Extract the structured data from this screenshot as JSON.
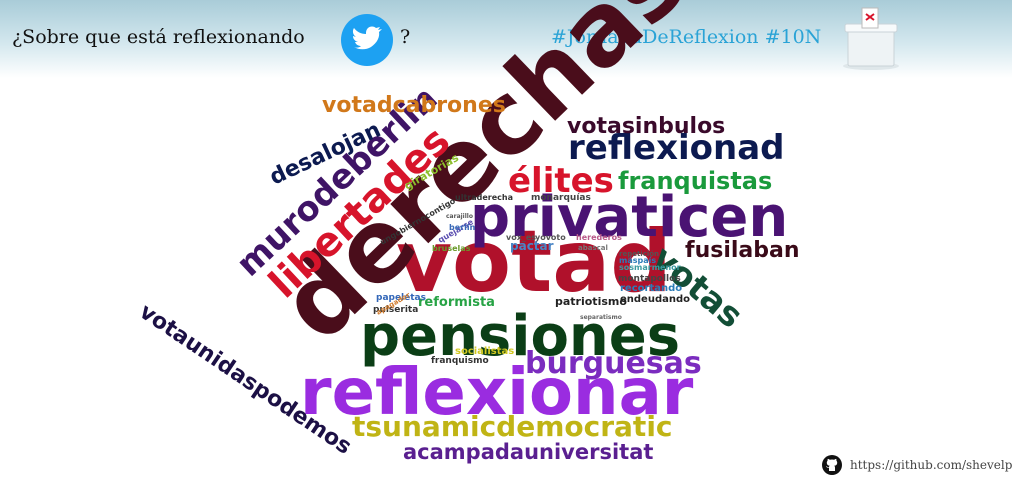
{
  "header": {
    "question": "¿Sobre que está reflexionando",
    "question_end": "?",
    "bird_icon": "twitter-bird-icon",
    "hashtags": "#JornadaDeReflexion #10N",
    "ballot_icon": "ballot-box-icon"
  },
  "footer": {
    "github_icon": "github-icon",
    "url": "https://github.com/shevelp"
  },
  "cloud": {
    "words": [
      {
        "text": "votad",
        "color": "#b0112b"
      },
      {
        "text": "derechas",
        "color": "#4a0d1b"
      },
      {
        "text": "pensiones",
        "color": "#0b3e16"
      },
      {
        "text": "reflexionar",
        "color": "#9a2ce0"
      },
      {
        "text": "privaticen",
        "color": "#4a1373"
      },
      {
        "text": "libertades",
        "color": "#d7142b"
      },
      {
        "text": "murodeberlin",
        "color": "#3f1466"
      },
      {
        "text": "reflexionad",
        "color": "#0c1a50"
      },
      {
        "text": "élites",
        "color": "#d7142b"
      },
      {
        "text": "franquistas",
        "color": "#1a9a3c"
      },
      {
        "text": "votasinbulos",
        "color": "#3a0a2b"
      },
      {
        "text": "votadcabrones",
        "color": "#d1781a"
      },
      {
        "text": "desalojan",
        "color": "#0c1a50"
      },
      {
        "text": "fusilaban",
        "color": "#3a0a18"
      },
      {
        "text": "votas",
        "color": "#124e36"
      },
      {
        "text": "burguesas",
        "color": "#7b2cbf"
      },
      {
        "text": "tsunamicdemocratic",
        "color": "#c0b415"
      },
      {
        "text": "acampadauniversitat",
        "color": "#5a1f90"
      },
      {
        "text": "votaunidaspodemos",
        "color": "#1c1045"
      },
      {
        "text": "giratorias",
        "color": "#8bbd2b"
      },
      {
        "text": "reformista",
        "color": "#27a345"
      },
      {
        "text": "papeletas",
        "color": "#3367b8"
      },
      {
        "text": "pulserita",
        "color": "#333333"
      },
      {
        "text": "franquismo",
        "color": "#333333"
      },
      {
        "text": "socialistas",
        "color": "#d1c820"
      },
      {
        "text": "patriotismo",
        "color": "#222222"
      },
      {
        "text": "endeudando",
        "color": "#222222"
      },
      {
        "text": "recortando",
        "color": "#2b7cb8"
      },
      {
        "text": "montapollos",
        "color": "#444444"
      },
      {
        "text": "monarquías",
        "color": "#444444"
      },
      {
        "text": "ultraderecha",
        "color": "#333333"
      },
      {
        "text": "pactar",
        "color": "#4a86c6"
      },
      {
        "text": "ungobiernocontigo",
        "color": "#333333"
      },
      {
        "text": "quejarse",
        "color": "#5a4db0"
      },
      {
        "text": "bruselas",
        "color": "#6a9a2a"
      },
      {
        "text": "berlin",
        "color": "#3a6ab8"
      },
      {
        "text": "herederos",
        "color": "#b85a8a"
      },
      {
        "text": "abascal",
        "color": "#777777"
      },
      {
        "text": "yovoto",
        "color": "#555555"
      },
      {
        "text": "vox_es",
        "color": "#555555"
      },
      {
        "text": "máspaís",
        "color": "#2b7cb8"
      },
      {
        "text": "sosmarmenor",
        "color": "#3a9aa0"
      },
      {
        "text": "repetición",
        "color": "#555555"
      },
      {
        "text": "carajillo",
        "color": "#555555"
      },
      {
        "text": "separatismo",
        "color": "#666666"
      },
      {
        "text": "apagador",
        "color": "#d07a2b"
      }
    ]
  }
}
